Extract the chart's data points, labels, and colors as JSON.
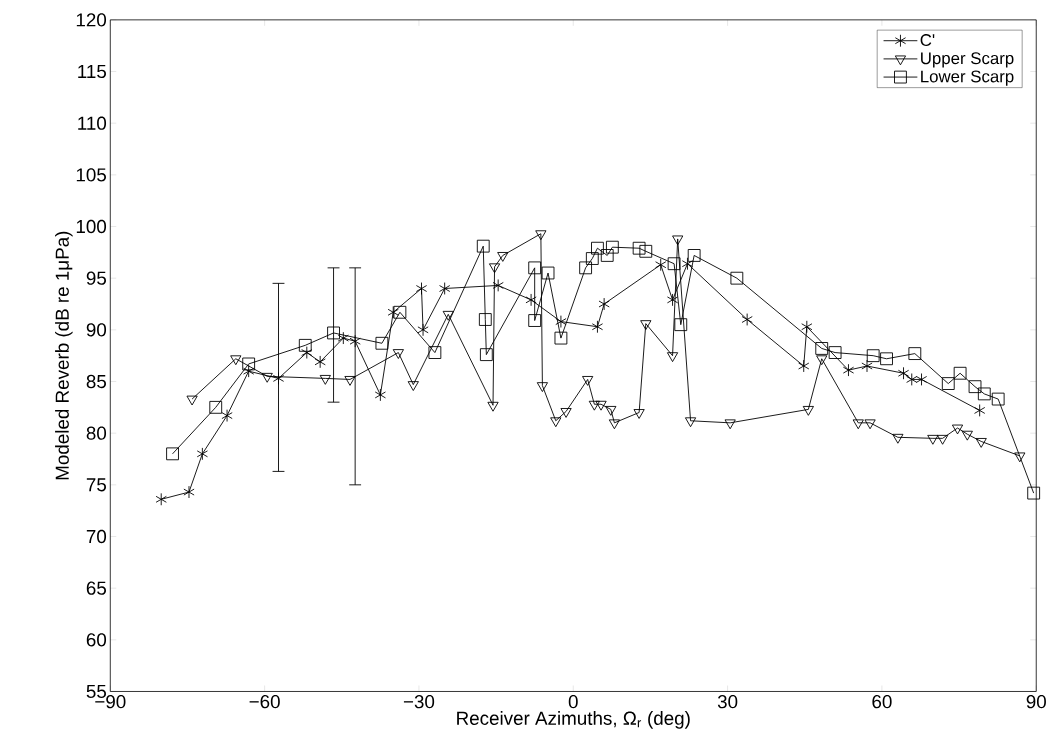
{
  "chart_data": {
    "type": "line",
    "xlabel": "Receiver Azimuths, Ω$_{r}$ (deg)",
    "ylabel": "Modeled Reverb (dB re 1μPa)",
    "xlim": [
      -90,
      90
    ],
    "ylim": [
      55,
      120
    ],
    "xticks": [
      {
        "value": -90,
        "label": "−90"
      },
      {
        "value": -60,
        "label": "−60"
      },
      {
        "value": -30,
        "label": "−30"
      },
      0,
      30,
      60,
      90
    ],
    "yticks": [
      55,
      60,
      65,
      70,
      75,
      80,
      85,
      90,
      95,
      100,
      105,
      110,
      115,
      120
    ],
    "legend": "top right",
    "grid": false,
    "line_style": "solid",
    "series": [
      {
        "name": "C'",
        "color": "#000000",
        "marker": "cross",
        "x": [
          -80.1,
          -74.7,
          -72.1,
          -67.3,
          -63.1,
          -57.3,
          -51.8,
          -49.2,
          -44.7,
          -42.4,
          -37.5,
          -35.0,
          -29.5,
          -29.2,
          -25.0,
          -14.6,
          -8.2,
          -2.4,
          4.7,
          6.0,
          17.0,
          19.3,
          22.2,
          33.8,
          44.8,
          45.4,
          53.5,
          57.1,
          64.2,
          65.8,
          67.7,
          79.0
        ],
        "values": [
          73.6,
          74.3,
          78.0,
          81.7,
          86.0,
          85.3,
          87.8,
          86.9,
          89.2,
          88.9,
          83.7,
          91.7,
          94.0,
          90.0,
          94.0,
          94.3,
          92.9,
          90.8,
          90.3,
          92.5,
          96.3,
          92.9,
          96.4,
          91.0,
          86.5,
          90.3,
          86.1,
          86.5,
          85.8,
          85.2,
          85.2,
          82.2
        ],
        "errors": [
          null,
          null,
          null,
          null,
          null,
          [
            76.3,
            94.5
          ],
          null,
          null,
          null,
          [
            75.0,
            96.0
          ],
          null,
          null,
          null,
          null,
          null,
          null,
          null,
          null,
          null,
          null,
          null,
          null,
          null,
          null,
          null,
          null,
          null,
          null,
          null,
          null,
          null,
          null
        ]
      },
      {
        "name": "Upper Scarp",
        "color": "#000000",
        "marker": "triangle",
        "x": [
          -74.1,
          -65.6,
          -59.5,
          -48.2,
          -43.4,
          -34.0,
          -31.1,
          -24.3,
          -15.6,
          -15.3,
          -13.7,
          -6.3,
          -6.0,
          -3.4,
          -1.4,
          2.8,
          4.1,
          5.4,
          7.3,
          8.0,
          12.8,
          14.1,
          19.3,
          20.3,
          22.8,
          30.5,
          45.7,
          48.3,
          55.4,
          57.7,
          63.1,
          69.9,
          71.8,
          74.7,
          76.6,
          79.3,
          86.8
        ],
        "values": [
          83.3,
          87.2,
          85.5,
          85.3,
          85.2,
          87.8,
          84.7,
          91.5,
          82.7,
          96.1,
          97.2,
          99.3,
          84.6,
          81.2,
          82.1,
          85.2,
          82.8,
          82.8,
          82.3,
          81.0,
          82.0,
          90.6,
          87.5,
          98.8,
          81.2,
          81.0,
          82.3,
          87.2,
          81.0,
          81.0,
          79.6,
          79.5,
          79.5,
          80.5,
          79.9,
          79.2,
          77.8
        ]
      },
      {
        "name": "Lower Scarp",
        "color": "#000000",
        "marker": "square",
        "x": [
          -77.9,
          -69.5,
          -63.1,
          -52.1,
          -46.6,
          -37.2,
          -33.7,
          -26.9,
          -17.5,
          -17.1,
          -16.9,
          -7.5,
          -7.5,
          -4.9,
          -2.4,
          2.4,
          3.7,
          4.7,
          6.6,
          7.6,
          12.8,
          14.1,
          19.6,
          20.9,
          23.5,
          31.8,
          48.3,
          50.9,
          58.3,
          60.9,
          66.4,
          72.9,
          75.2,
          78.1,
          79.9,
          82.6,
          89.5
        ],
        "values": [
          78.0,
          82.5,
          86.7,
          88.5,
          89.7,
          88.7,
          91.7,
          87.8,
          98.1,
          91.0,
          87.6,
          96.0,
          90.9,
          95.5,
          89.2,
          96.0,
          96.9,
          97.9,
          97.2,
          98.0,
          97.9,
          97.6,
          96.4,
          90.5,
          97.2,
          95.0,
          88.2,
          87.8,
          87.5,
          87.2,
          87.7,
          84.8,
          85.8,
          84.5,
          83.8,
          83.3,
          74.2
        ],
        "errors": [
          null,
          null,
          null,
          null,
          [
            83.0,
            96.0
          ],
          null,
          null,
          null,
          null,
          null,
          null,
          null,
          null,
          null,
          null,
          null,
          null,
          null,
          null,
          null,
          null,
          null,
          null,
          null,
          null,
          null,
          null,
          null,
          null,
          null,
          null,
          null,
          null,
          null,
          null,
          null,
          null
        ]
      }
    ]
  }
}
